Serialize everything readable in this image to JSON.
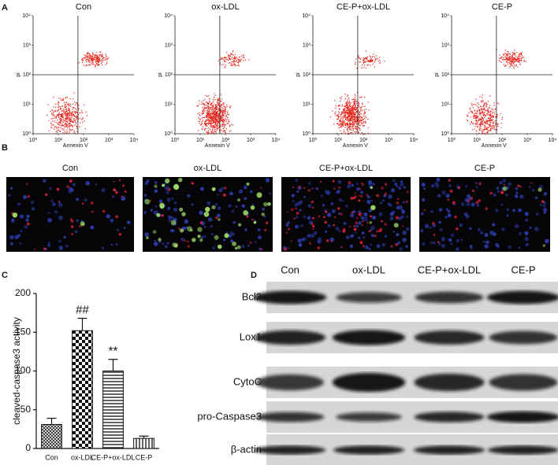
{
  "panel_a": {
    "letter": "A",
    "titles": [
      "Con",
      "ox-LDL",
      "CE-P+ox-LDL",
      "CE-P"
    ],
    "flow_axes": {
      "xlabel": "Annexin V",
      "ylabel": "pi",
      "log": true,
      "xlim": [
        1,
        10000
      ],
      "ylim": [
        1,
        10000
      ],
      "ticks": [
        {
          "value": 1,
          "label": "10⁰"
        },
        {
          "value": 10,
          "label": "10¹"
        },
        {
          "value": 100,
          "label": "10²"
        },
        {
          "value": 1000,
          "label": "10³"
        },
        {
          "value": 10000,
          "label": "10⁴"
        }
      ],
      "quadrant": {
        "x": 60,
        "y": 100
      }
    }
  },
  "panel_b": {
    "letter": "B",
    "titles": [
      "Con",
      "ox-LDL",
      "CE-P+ox-LDL",
      "CE-P"
    ]
  },
  "chart_data": {
    "type": "bar",
    "letter": "C",
    "ylabel": "cleaved-caspase3 activity",
    "categories": [
      "Con",
      "ox-LDL",
      "CE-P+ox-LDL",
      "CE-P"
    ],
    "values": [
      31,
      152,
      100,
      13
    ],
    "errors": [
      8,
      16,
      15,
      3
    ],
    "bar_annotations": [
      null,
      "##",
      "**",
      null
    ],
    "patterns": [
      "crosshatch",
      "checker",
      "hlines",
      "vlines"
    ],
    "ylim": [
      0,
      200
    ],
    "yticks": [
      0,
      50,
      100,
      150,
      200
    ],
    "grid": false
  },
  "panel_d": {
    "letter": "D",
    "columns": [
      "Con",
      "ox-LDL",
      "CE-P+ox-LDL",
      "CE-P"
    ],
    "rows": [
      "Bcl2",
      "Lox1",
      "CytoC",
      "pro-Caspase3",
      "β-actin"
    ]
  }
}
